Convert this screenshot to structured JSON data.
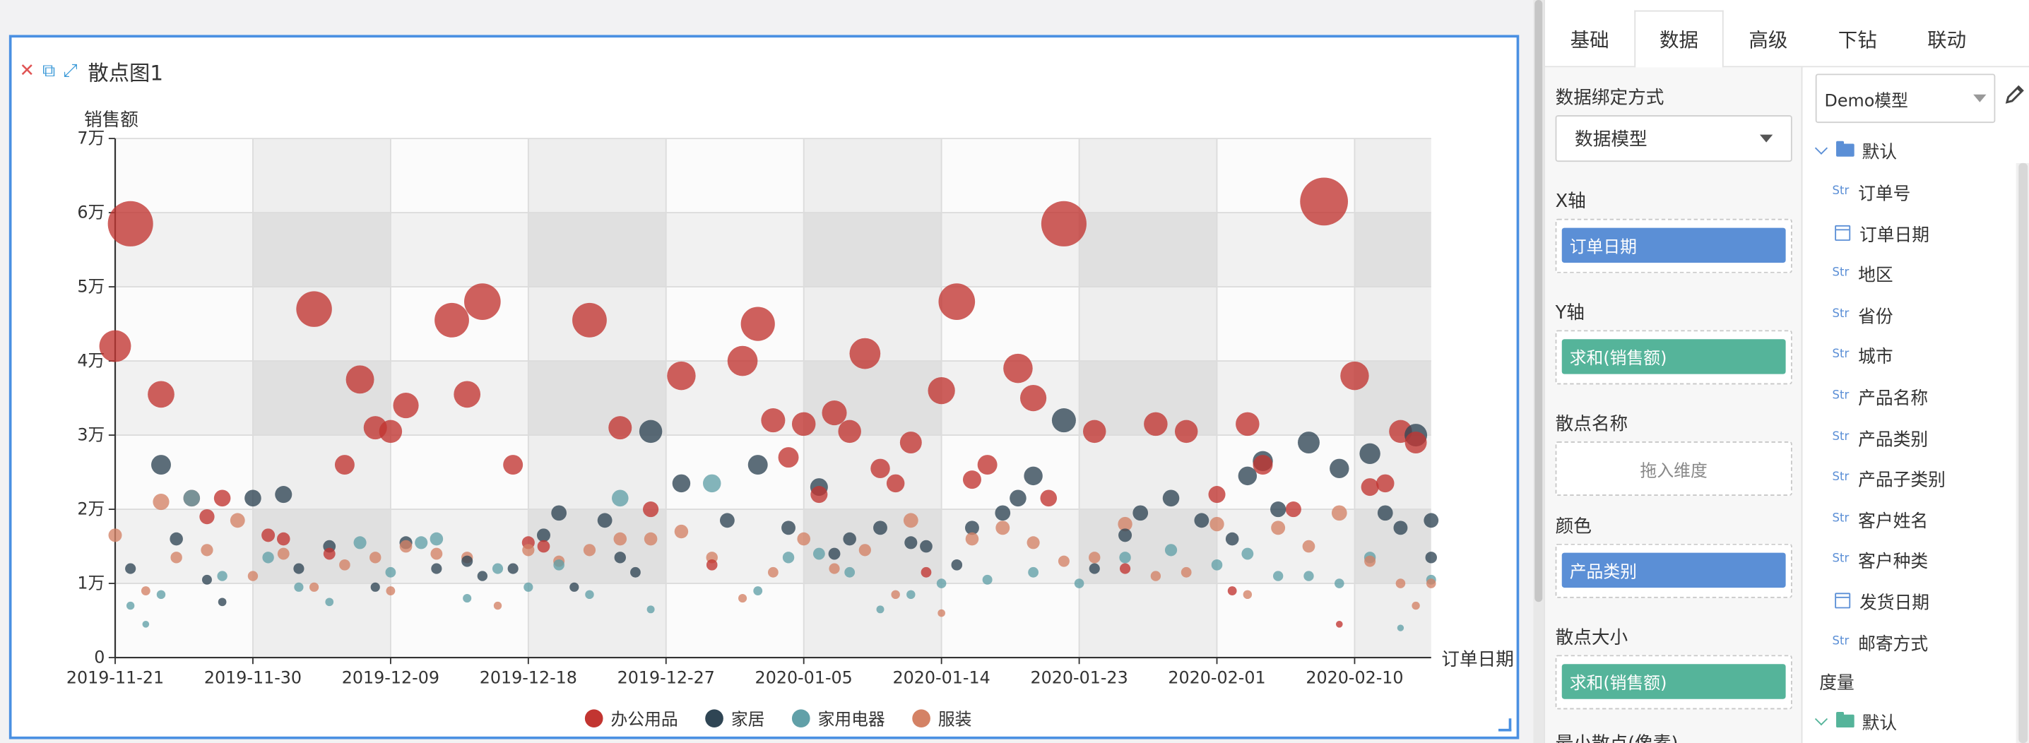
{
  "chart_card": {
    "title": "散点图1",
    "tools": {
      "close": "✕",
      "copy": "⧉",
      "expand": "⤢"
    }
  },
  "chart_data": {
    "type": "scatter",
    "title": "散点图1",
    "xlabel": "订单日期",
    "ylabel": "销售额",
    "x_ticks": [
      "2019-11-21",
      "2019-11-30",
      "2019-12-09",
      "2019-12-18",
      "2019-12-27",
      "2020-01-05",
      "2020-01-14",
      "2020-01-23",
      "2020-02-01",
      "2020-02-10"
    ],
    "y_ticks": [
      "0",
      "1万",
      "2万",
      "3万",
      "4万",
      "5万",
      "6万",
      "7万"
    ],
    "ylim": [
      0,
      70000
    ],
    "x_range": [
      "2019-11-21",
      "2020-02-15"
    ],
    "grid": true,
    "legend_position": "bottom",
    "colors": {
      "办公用品": "#c23531",
      "家居": "#2f4554",
      "家用电器": "#61a0a8",
      "服装": "#d48265"
    },
    "series": [
      {
        "name": "办公用品",
        "points": [
          [
            "2019-11-21",
            42000
          ],
          [
            "2019-11-22",
            58500
          ],
          [
            "2019-11-24",
            35500
          ],
          [
            "2019-11-26",
            21500
          ],
          [
            "2019-11-27",
            19000
          ],
          [
            "2019-11-28",
            21500
          ],
          [
            "2019-12-01",
            16500
          ],
          [
            "2019-12-02",
            16000
          ],
          [
            "2019-12-04",
            47000
          ],
          [
            "2019-12-06",
            26000
          ],
          [
            "2019-12-07",
            37500
          ],
          [
            "2019-12-08",
            31000
          ],
          [
            "2019-12-09",
            30500
          ],
          [
            "2019-12-10",
            34000
          ],
          [
            "2019-12-13",
            45500
          ],
          [
            "2019-12-14",
            35500
          ],
          [
            "2019-12-15",
            48000
          ],
          [
            "2019-12-17",
            26000
          ],
          [
            "2019-12-18",
            15500
          ],
          [
            "2019-12-22",
            45500
          ],
          [
            "2019-12-24",
            31000
          ],
          [
            "2019-12-26",
            20000
          ],
          [
            "2019-12-28",
            38000
          ],
          [
            "2020-01-01",
            40000
          ],
          [
            "2020-01-02",
            45000
          ],
          [
            "2020-01-03",
            32000
          ],
          [
            "2020-01-04",
            27000
          ],
          [
            "2020-01-05",
            31500
          ],
          [
            "2020-01-06",
            22000
          ],
          [
            "2020-01-07",
            33000
          ],
          [
            "2020-01-08",
            30500
          ],
          [
            "2020-01-09",
            41000
          ],
          [
            "2020-01-10",
            25500
          ],
          [
            "2020-01-11",
            23500
          ],
          [
            "2020-01-12",
            29000
          ],
          [
            "2020-01-14",
            36000
          ],
          [
            "2020-01-15",
            48000
          ],
          [
            "2020-01-16",
            24000
          ],
          [
            "2020-01-17",
            26000
          ],
          [
            "2020-01-19",
            39000
          ],
          [
            "2020-01-20",
            35000
          ],
          [
            "2020-01-21",
            21500
          ],
          [
            "2020-01-22",
            58500
          ],
          [
            "2020-01-24",
            30500
          ],
          [
            "2020-01-28",
            31500
          ],
          [
            "2020-01-30",
            30500
          ],
          [
            "2020-02-01",
            22000
          ],
          [
            "2020-02-03",
            31500
          ],
          [
            "2020-02-04",
            26000
          ],
          [
            "2020-02-06",
            20000
          ],
          [
            "2020-02-08",
            61500
          ],
          [
            "2020-02-10",
            38000
          ],
          [
            "2020-02-11",
            23000
          ],
          [
            "2020-02-12",
            23500
          ],
          [
            "2020-02-13",
            30500
          ],
          [
            "2020-02-14",
            29000
          ],
          [
            "2019-12-05",
            14000
          ],
          [
            "2019-12-19",
            15000
          ],
          [
            "2019-12-30",
            12500
          ],
          [
            "2020-01-13",
            11500
          ],
          [
            "2020-01-26",
            12000
          ],
          [
            "2020-02-02",
            9000
          ],
          [
            "2020-02-09",
            4500
          ]
        ]
      },
      {
        "name": "家居",
        "points": [
          [
            "2019-11-22",
            12000
          ],
          [
            "2019-11-24",
            26000
          ],
          [
            "2019-11-25",
            16000
          ],
          [
            "2019-11-27",
            10500
          ],
          [
            "2019-11-28",
            7500
          ],
          [
            "2019-11-30",
            21500
          ],
          [
            "2019-12-02",
            22000
          ],
          [
            "2019-12-03",
            12000
          ],
          [
            "2019-12-05",
            15000
          ],
          [
            "2019-12-08",
            9500
          ],
          [
            "2019-12-10",
            15500
          ],
          [
            "2019-12-12",
            12000
          ],
          [
            "2019-12-14",
            13000
          ],
          [
            "2019-12-15",
            11000
          ],
          [
            "2019-12-17",
            12000
          ],
          [
            "2019-12-19",
            16500
          ],
          [
            "2019-12-20",
            19500
          ],
          [
            "2019-12-21",
            9500
          ],
          [
            "2019-12-23",
            18500
          ],
          [
            "2019-12-24",
            13500
          ],
          [
            "2019-12-25",
            11500
          ],
          [
            "2019-12-26",
            30500
          ],
          [
            "2019-12-28",
            23500
          ],
          [
            "2019-12-31",
            18500
          ],
          [
            "2020-01-02",
            26000
          ],
          [
            "2020-01-04",
            17500
          ],
          [
            "2020-01-06",
            23000
          ],
          [
            "2020-01-07",
            14000
          ],
          [
            "2020-01-08",
            16000
          ],
          [
            "2020-01-10",
            17500
          ],
          [
            "2020-01-12",
            15500
          ],
          [
            "2020-01-13",
            15000
          ],
          [
            "2020-01-15",
            12500
          ],
          [
            "2020-01-16",
            17500
          ],
          [
            "2020-01-18",
            19500
          ],
          [
            "2020-01-19",
            21500
          ],
          [
            "2020-01-20",
            24500
          ],
          [
            "2020-01-22",
            32000
          ],
          [
            "2020-01-24",
            12000
          ],
          [
            "2020-01-26",
            16500
          ],
          [
            "2020-01-27",
            19500
          ],
          [
            "2020-01-29",
            21500
          ],
          [
            "2020-01-31",
            18500
          ],
          [
            "2020-02-02",
            16000
          ],
          [
            "2020-02-03",
            24500
          ],
          [
            "2020-02-04",
            26500
          ],
          [
            "2020-02-05",
            20000
          ],
          [
            "2020-02-07",
            29000
          ],
          [
            "2020-02-09",
            25500
          ],
          [
            "2020-02-11",
            27500
          ],
          [
            "2020-02-12",
            19500
          ],
          [
            "2020-02-14",
            30000
          ],
          [
            "2020-02-15",
            18500
          ],
          [
            "2020-02-13",
            17500
          ],
          [
            "2020-02-15",
            13500
          ]
        ]
      },
      {
        "name": "家用电器",
        "points": [
          [
            "2019-11-22",
            7000
          ],
          [
            "2019-11-23",
            4500
          ],
          [
            "2019-11-24",
            8500
          ],
          [
            "2019-11-26",
            21500
          ],
          [
            "2019-11-28",
            11000
          ],
          [
            "2019-12-01",
            13500
          ],
          [
            "2019-12-03",
            9500
          ],
          [
            "2019-12-05",
            7500
          ],
          [
            "2019-12-07",
            15500
          ],
          [
            "2019-12-09",
            11500
          ],
          [
            "2019-12-11",
            15500
          ],
          [
            "2019-12-12",
            16000
          ],
          [
            "2019-12-14",
            8000
          ],
          [
            "2019-12-16",
            12000
          ],
          [
            "2019-12-18",
            9500
          ],
          [
            "2019-12-20",
            12500
          ],
          [
            "2019-12-22",
            8500
          ],
          [
            "2019-12-24",
            21500
          ],
          [
            "2019-12-26",
            6500
          ],
          [
            "2019-12-30",
            23500
          ],
          [
            "2020-01-02",
            9000
          ],
          [
            "2020-01-04",
            13500
          ],
          [
            "2020-01-06",
            14000
          ],
          [
            "2020-01-08",
            11500
          ],
          [
            "2020-01-10",
            6500
          ],
          [
            "2020-01-12",
            8500
          ],
          [
            "2020-01-14",
            10000
          ],
          [
            "2020-01-17",
            10500
          ],
          [
            "2020-01-20",
            11500
          ],
          [
            "2020-01-23",
            10000
          ],
          [
            "2020-01-26",
            13500
          ],
          [
            "2020-01-29",
            14500
          ],
          [
            "2020-02-01",
            12500
          ],
          [
            "2020-02-03",
            14000
          ],
          [
            "2020-02-05",
            11000
          ],
          [
            "2020-02-07",
            11000
          ],
          [
            "2020-02-09",
            10000
          ],
          [
            "2020-02-11",
            13500
          ],
          [
            "2020-02-13",
            4000
          ],
          [
            "2020-02-15",
            10500
          ]
        ]
      },
      {
        "name": "服装",
        "points": [
          [
            "2019-11-21",
            16500
          ],
          [
            "2019-11-23",
            9000
          ],
          [
            "2019-11-24",
            21000
          ],
          [
            "2019-11-25",
            13500
          ],
          [
            "2019-11-27",
            14500
          ],
          [
            "2019-11-29",
            18500
          ],
          [
            "2019-11-30",
            11000
          ],
          [
            "2019-12-02",
            14000
          ],
          [
            "2019-12-04",
            9500
          ],
          [
            "2019-12-06",
            12500
          ],
          [
            "2019-12-08",
            13500
          ],
          [
            "2019-12-09",
            9000
          ],
          [
            "2019-12-10",
            15000
          ],
          [
            "2019-12-12",
            14000
          ],
          [
            "2019-12-14",
            13500
          ],
          [
            "2019-12-16",
            7000
          ],
          [
            "2019-12-18",
            14500
          ],
          [
            "2019-12-20",
            13000
          ],
          [
            "2019-12-22",
            14500
          ],
          [
            "2019-12-24",
            16000
          ],
          [
            "2019-12-26",
            16000
          ],
          [
            "2019-12-28",
            17000
          ],
          [
            "2019-12-30",
            13500
          ],
          [
            "2020-01-01",
            8000
          ],
          [
            "2020-01-03",
            11500
          ],
          [
            "2020-01-05",
            16000
          ],
          [
            "2020-01-07",
            12000
          ],
          [
            "2020-01-09",
            14500
          ],
          [
            "2020-01-11",
            8500
          ],
          [
            "2020-01-12",
            18500
          ],
          [
            "2020-01-14",
            6000
          ],
          [
            "2020-01-16",
            16000
          ],
          [
            "2020-01-18",
            17500
          ],
          [
            "2020-01-20",
            15500
          ],
          [
            "2020-01-22",
            13000
          ],
          [
            "2020-01-24",
            13500
          ],
          [
            "2020-01-26",
            18000
          ],
          [
            "2020-01-28",
            11000
          ],
          [
            "2020-01-30",
            11500
          ],
          [
            "2020-02-01",
            18000
          ],
          [
            "2020-02-03",
            8500
          ],
          [
            "2020-02-05",
            17500
          ],
          [
            "2020-02-07",
            15000
          ],
          [
            "2020-02-09",
            19500
          ],
          [
            "2020-02-11",
            13000
          ],
          [
            "2020-02-13",
            10000
          ],
          [
            "2020-02-14",
            7000
          ],
          [
            "2020-02-15",
            10000
          ]
        ]
      }
    ]
  },
  "right_panel": {
    "tabs": [
      {
        "label": "基础",
        "active": false
      },
      {
        "label": "数据",
        "active": true
      },
      {
        "label": "高级",
        "active": false
      },
      {
        "label": "下钻",
        "active": false
      },
      {
        "label": "联动",
        "active": false
      }
    ],
    "binding_label": "数据绑定方式",
    "binding_value": "数据模型",
    "x_axis_label": "X轴",
    "x_axis_pill": "订单日期",
    "y_axis_label": "Y轴",
    "y_axis_pill": "求和(销售额)",
    "scatter_name_label": "散点名称",
    "scatter_name_hint": "拖入维度",
    "color_label": "颜色",
    "color_pill": "产品类别",
    "size_label": "散点大小",
    "size_pill": "求和(销售额)",
    "min_size_label": "最小散点(像素)"
  },
  "field_tree": {
    "model_select": "Demo模型",
    "dimension_group": "默认",
    "fields": [
      {
        "type": "Str",
        "name": "订单号"
      },
      {
        "type": "date",
        "name": "订单日期"
      },
      {
        "type": "Str",
        "name": "地区"
      },
      {
        "type": "Str",
        "name": "省份"
      },
      {
        "type": "Str",
        "name": "城市"
      },
      {
        "type": "Str",
        "name": "产品名称"
      },
      {
        "type": "Str",
        "name": "产品类别"
      },
      {
        "type": "Str",
        "name": "产品子类别"
      },
      {
        "type": "Str",
        "name": "客户姓名"
      },
      {
        "type": "Str",
        "name": "客户种类"
      },
      {
        "type": "date",
        "name": "发货日期"
      },
      {
        "type": "Str",
        "name": "邮寄方式"
      }
    ],
    "measure_label": "度量",
    "measure_group": "默认"
  }
}
